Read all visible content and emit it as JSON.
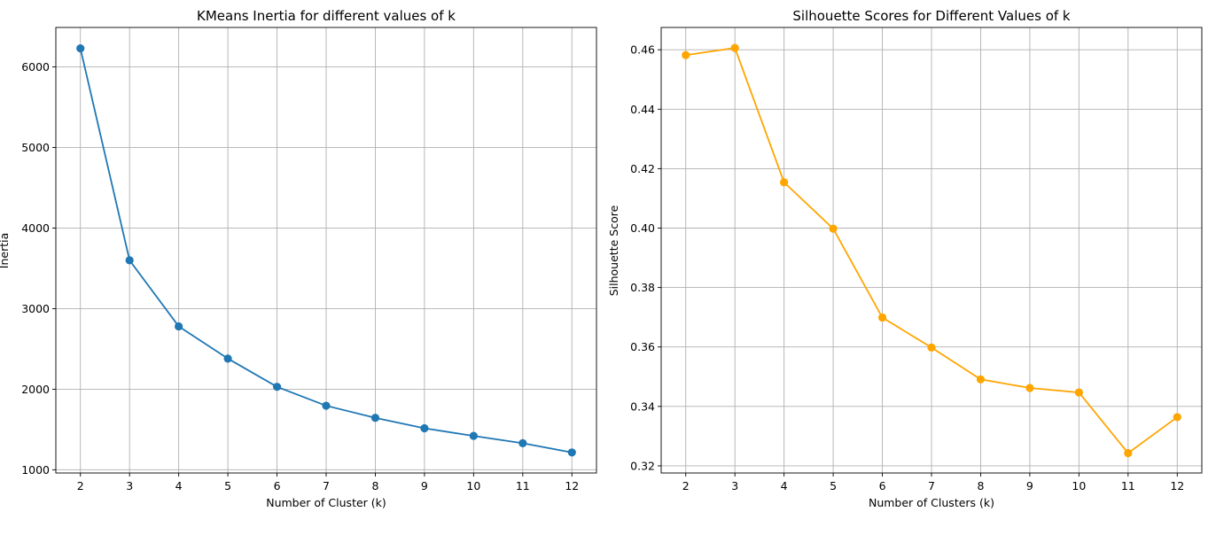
{
  "chart_data": [
    {
      "type": "line",
      "title": "KMeans Inertia for different values of k",
      "xlabel": "Number of Cluster (k)",
      "ylabel": "Inertia",
      "x": [
        2,
        3,
        4,
        5,
        6,
        7,
        8,
        9,
        10,
        11,
        12
      ],
      "xticks": [
        2,
        3,
        4,
        5,
        6,
        7,
        8,
        9,
        10,
        11,
        12
      ],
      "yticks": [
        1000,
        2000,
        3000,
        4000,
        5000,
        6000
      ],
      "xlim": [
        1.5,
        12.5
      ],
      "ylim": [
        960,
        6490
      ],
      "grid": true,
      "series": [
        {
          "color": "#1f77b4",
          "marker": "circle",
          "values": [
            6230,
            3600,
            2780,
            2380,
            2030,
            1795,
            1645,
            1515,
            1420,
            1330,
            1215
          ]
        }
      ]
    },
    {
      "type": "line",
      "title": "Silhouette Scores for Different Values of k",
      "xlabel": "Number of Clusters (k)",
      "ylabel": "Silhouette Score",
      "x": [
        2,
        3,
        4,
        5,
        6,
        7,
        8,
        9,
        10,
        11,
        12
      ],
      "xticks": [
        2,
        3,
        4,
        5,
        6,
        7,
        8,
        9,
        10,
        11,
        12
      ],
      "yticks": [
        0.32,
        0.34,
        0.36,
        0.38,
        0.4,
        0.42,
        0.44,
        0.46
      ],
      "ylim": [
        0.3176,
        0.4675
      ],
      "xlim": [
        1.5,
        12.5
      ],
      "grid": true,
      "series": [
        {
          "color": "#ffa500",
          "marker": "circle",
          "values": [
            0.4582,
            0.4606,
            0.4154,
            0.3998,
            0.3699,
            0.3598,
            0.3491,
            0.3462,
            0.3447,
            0.3243,
            0.3364
          ]
        }
      ]
    }
  ]
}
